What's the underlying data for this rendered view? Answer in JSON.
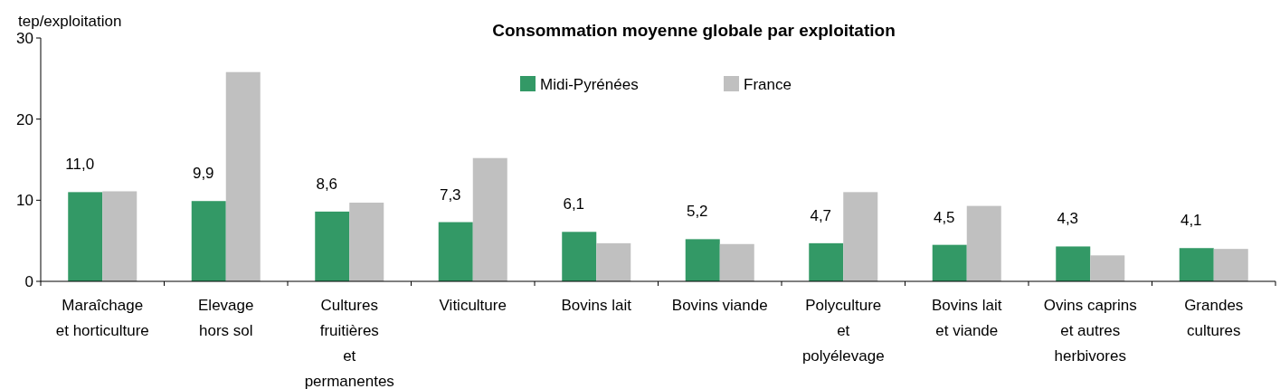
{
  "chart_data": {
    "type": "bar",
    "title": "Consommation moyenne globale par exploitation",
    "ylabel": "tep/exploitation",
    "categories": [
      "Maraîchage\net horticulture",
      "Elevage\nhors sol",
      "Cultures\nfruitières\net\npermanentes",
      "Viticulture",
      "Bovins lait",
      "Bovins viande",
      "Polyculture\net\npolyélevage",
      "Bovins lait\net viande",
      "Ovins caprins\net autres\nherbivores",
      "Grandes\ncultures"
    ],
    "series": [
      {
        "name": "Midi-Pyrénées",
        "color": "#339966",
        "values": [
          11.0,
          9.9,
          8.6,
          7.3,
          6.1,
          5.2,
          4.7,
          4.5,
          4.3,
          4.1
        ],
        "value_labels": [
          "11,0",
          "9,9",
          "8,6",
          "7,3",
          "6,1",
          "5,2",
          "4,7",
          "4,5",
          "4,3",
          "4,1"
        ]
      },
      {
        "name": "France",
        "color": "#c0c0c0",
        "values": [
          11.1,
          25.8,
          9.7,
          15.2,
          4.7,
          4.6,
          11.0,
          9.3,
          3.2,
          4.0
        ]
      }
    ],
    "ylim": [
      0,
      30
    ],
    "yticks": [
      0,
      10,
      20,
      30
    ],
    "grid": false,
    "legend": "top"
  }
}
